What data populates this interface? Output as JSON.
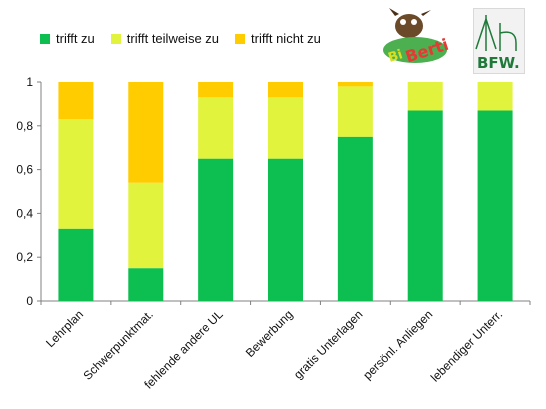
{
  "legend": {
    "items": [
      {
        "label": "trifft zu",
        "color": "#0DBF50"
      },
      {
        "label": "trifft teilweise zu",
        "color": "#E1F33C"
      },
      {
        "label": "trifft nicht zu",
        "color": "#FFCC00"
      }
    ]
  },
  "logos": {
    "berti": {
      "text": "Bi Berti"
    },
    "bfw": {
      "text": "BFW."
    }
  },
  "chart_data": {
    "type": "bar",
    "stacked": true,
    "categories": [
      "Lehrplan",
      "Schwerpunktmat.",
      "fehlende andere UL",
      "Bewerbung",
      "gratis Unterlagen",
      "persönl. Anliegen",
      "lebendiger Unterr."
    ],
    "series": [
      {
        "name": "trifft zu",
        "color": "#0DBF50",
        "values": [
          0.33,
          0.15,
          0.65,
          0.65,
          0.75,
          0.87,
          0.87
        ]
      },
      {
        "name": "trifft teilweise zu",
        "color": "#E1F33C",
        "values": [
          0.5,
          0.39,
          0.28,
          0.28,
          0.23,
          0.13,
          0.13
        ]
      },
      {
        "name": "trifft nicht zu",
        "color": "#FFCC00",
        "values": [
          0.17,
          0.46,
          0.07,
          0.07,
          0.02,
          0.0,
          0.0
        ]
      }
    ],
    "yticks": [
      "0",
      "0,2",
      "0,4",
      "0,6",
      "0,8",
      "1"
    ],
    "ylim": [
      0,
      1
    ],
    "grid": false,
    "legend_position": "top"
  }
}
